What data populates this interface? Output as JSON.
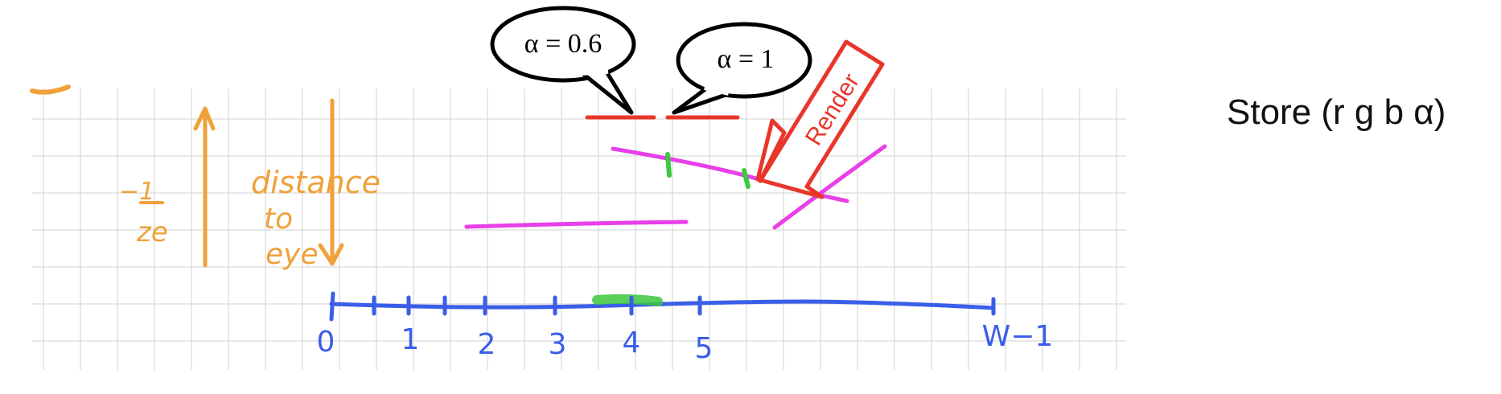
{
  "bubbles": {
    "left": "α = 0.6",
    "right": "α = 1"
  },
  "render_arrow_label": "Render",
  "store_text": "Store (r g b α)",
  "ink_labels": {
    "minus_one_over": "−1",
    "z_e": "ze",
    "distance_to_eye": [
      "distance",
      "to",
      "eye"
    ]
  },
  "axis": {
    "tick_labels": [
      "0",
      "1",
      "2",
      "3",
      "4",
      "5"
    ],
    "end_label": "W−1"
  },
  "colors": {
    "grid": "#d9d9d9",
    "orange_ink": "#f0a13a",
    "blue_axis": "#3a5ee8",
    "magenta_lines": "#e83fe8",
    "red_ink": "#e8362a",
    "green_marks": "#3cc840"
  }
}
